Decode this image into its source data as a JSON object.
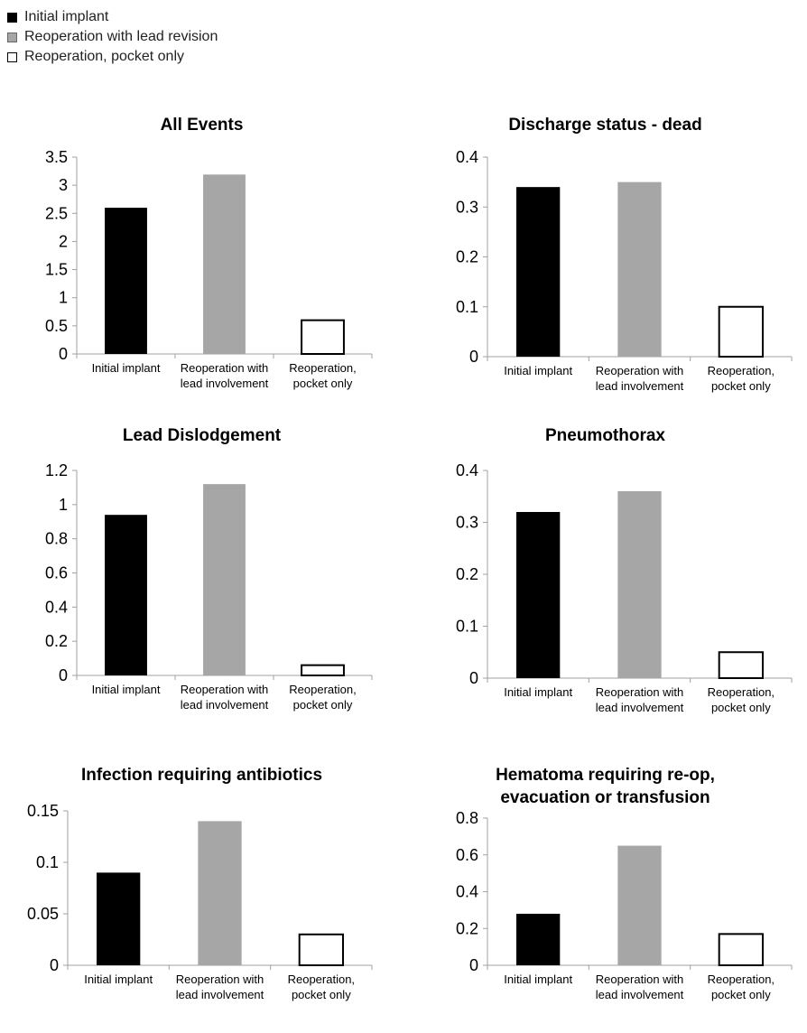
{
  "legend": [
    {
      "label": "Initial implant",
      "color": "#000000"
    },
    {
      "label": "Reoperation with lead revision",
      "color": "#a6a6a6"
    },
    {
      "label": "Reoperation, pocket only",
      "color": "#ffffff"
    }
  ],
  "colors": {
    "initial": "#000000",
    "lead": "#a6a6a6",
    "pocket": "#ffffff",
    "axis": "#a0a0a0"
  },
  "chart_data": [
    {
      "type": "bar",
      "title": "All Events",
      "categories": [
        [
          "Initial implant"
        ],
        [
          "Reoperation with",
          "lead involvement"
        ],
        [
          "Reoperation,",
          "pocket only"
        ]
      ],
      "values": [
        2.6,
        3.19,
        0.6
      ],
      "ylim": [
        0,
        3.5
      ],
      "yticks": [
        "0",
        "0.5",
        "1",
        "1.5",
        "2",
        "2.5",
        "3",
        "3.5"
      ],
      "xlabel": "",
      "ylabel": ""
    },
    {
      "type": "bar",
      "title": "Discharge status - dead",
      "categories": [
        [
          "Initial implant"
        ],
        [
          "Reoperation with",
          "lead involvement"
        ],
        [
          "Reoperation,",
          "pocket only"
        ]
      ],
      "values": [
        0.34,
        0.35,
        0.1
      ],
      "ylim": [
        0,
        0.4
      ],
      "yticks": [
        "0",
        "0.1",
        "0.2",
        "0.3",
        "0.4"
      ],
      "xlabel": "",
      "ylabel": ""
    },
    {
      "type": "bar",
      "title": "Lead Dislodgement",
      "categories": [
        [
          "Initial implant"
        ],
        [
          "Reoperation with",
          "lead involvement"
        ],
        [
          "Reoperation,",
          "pocket only"
        ]
      ],
      "values": [
        0.94,
        1.12,
        0.06
      ],
      "ylim": [
        0,
        1.2
      ],
      "yticks": [
        "0",
        "0.2",
        "0.4",
        "0.6",
        "0.8",
        "1",
        "1.2"
      ],
      "xlabel": "",
      "ylabel": ""
    },
    {
      "type": "bar",
      "title": "Pneumothorax",
      "categories": [
        [
          "Initial implant"
        ],
        [
          "Reoperation with",
          "lead involvement"
        ],
        [
          "Reoperation,",
          "pocket only"
        ]
      ],
      "values": [
        0.32,
        0.36,
        0.05
      ],
      "ylim": [
        0,
        0.4
      ],
      "yticks": [
        "0",
        "0.1",
        "0.2",
        "0.3",
        "0.4"
      ],
      "xlabel": "",
      "ylabel": ""
    },
    {
      "type": "bar",
      "title": "Infection requiring antibiotics",
      "categories": [
        [
          "Initial implant"
        ],
        [
          "Reoperation with",
          "lead involvement"
        ],
        [
          "Reoperation,",
          "pocket only"
        ]
      ],
      "values": [
        0.09,
        0.14,
        0.03
      ],
      "ylim": [
        0,
        0.15
      ],
      "yticks": [
        "0",
        "0.05",
        "0.1",
        "0.15"
      ],
      "xlabel": "",
      "ylabel": ""
    },
    {
      "type": "bar",
      "title": "Hematoma requiring re-op,\nevacuation or transfusion",
      "categories": [
        [
          "Initial implant"
        ],
        [
          "Reoperation with",
          "lead involvement"
        ],
        [
          "Reoperation,",
          "pocket only"
        ]
      ],
      "values": [
        0.28,
        0.65,
        0.17
      ],
      "ylim": [
        0,
        0.8
      ],
      "yticks": [
        "0",
        "0.2",
        "0.4",
        "0.6",
        "0.8"
      ],
      "xlabel": "",
      "ylabel": ""
    }
  ]
}
